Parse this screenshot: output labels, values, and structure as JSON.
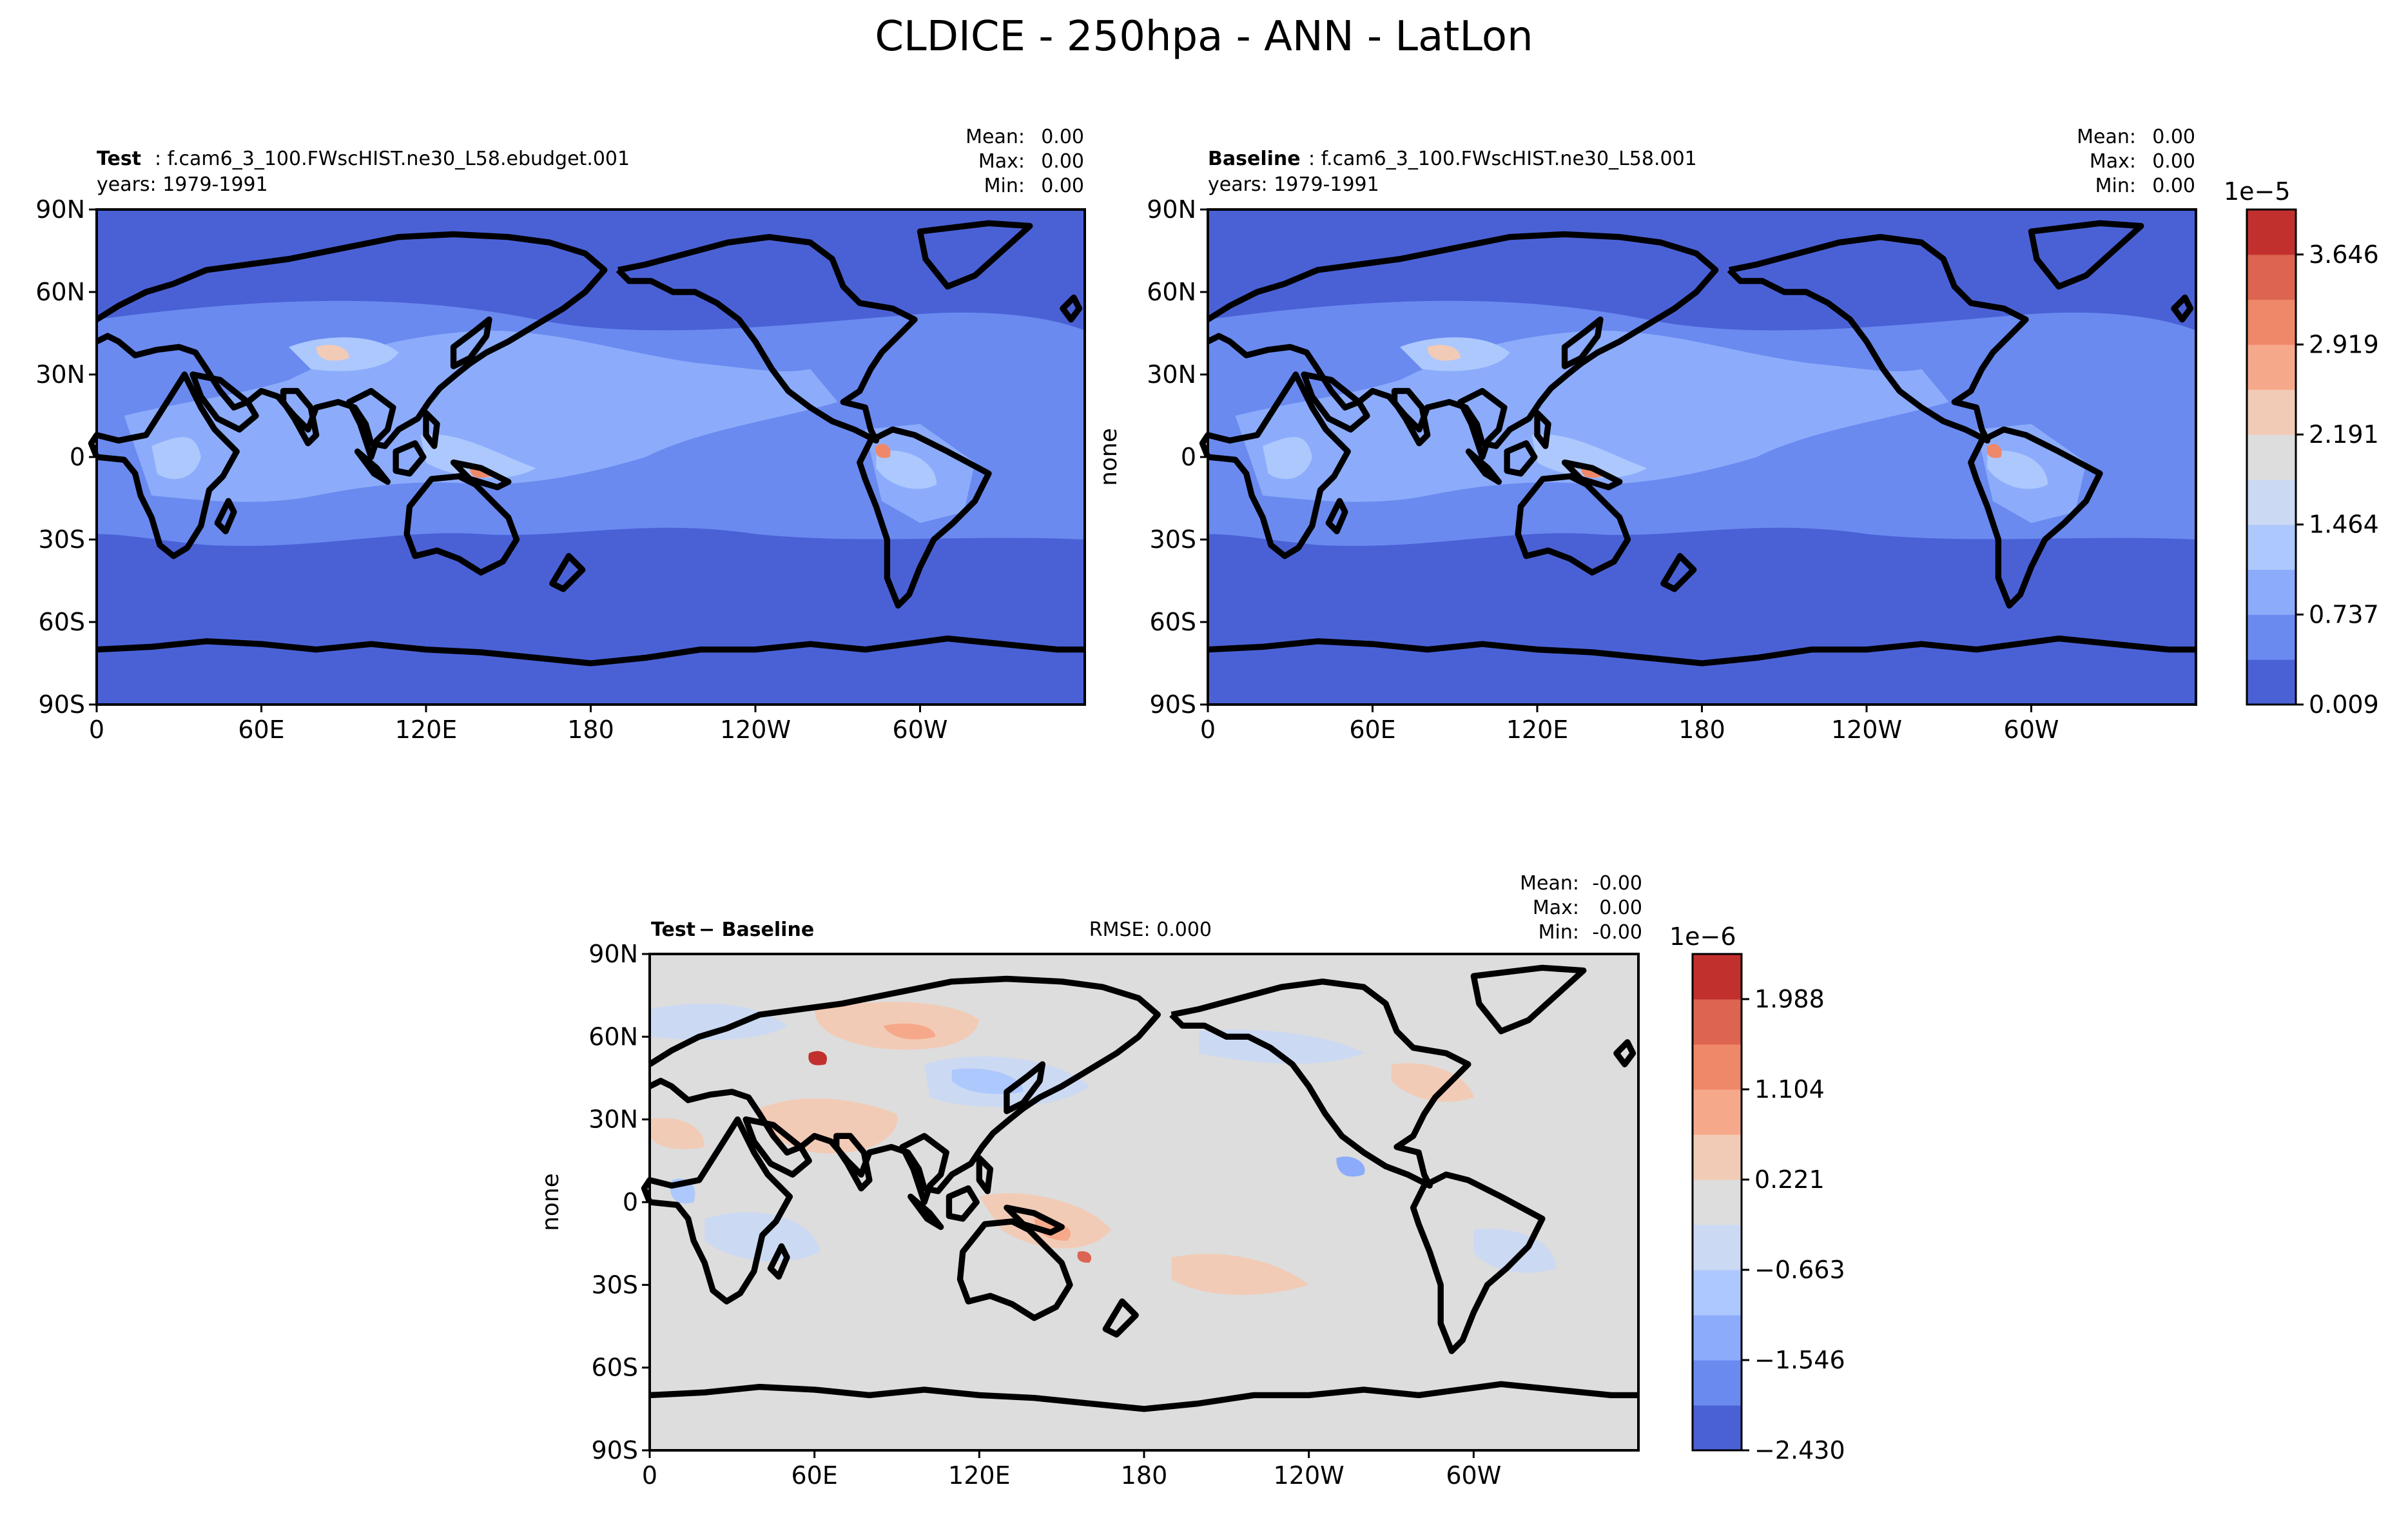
{
  "figure": {
    "title": "CLDICE - 250hpa - ANN - LatLon"
  },
  "chart_data": [
    {
      "type": "heatmap",
      "panel": "test",
      "title_bold": "Test",
      "title_rest": ": f.cam6_3_100.FWscHIST.ne30_L58.ebudget.001",
      "subtitle": "years: 1979-1991",
      "stats": [
        {
          "label": "Mean:",
          "value": "0.00"
        },
        {
          "label": "Max:",
          "value": "0.00"
        },
        {
          "label": "Min:",
          "value": "0.00"
        }
      ],
      "ylabel": "",
      "xticks": [
        "0",
        "60E",
        "120E",
        "180",
        "120W",
        "60W"
      ],
      "yticks": [
        "90N",
        "60N",
        "30N",
        "0",
        "30S",
        "60S",
        "90S"
      ],
      "xlim": [
        0,
        360
      ],
      "ylim": [
        -90,
        90
      ]
    },
    {
      "type": "heatmap",
      "panel": "baseline",
      "title_bold": "Baseline",
      "title_rest": ": f.cam6_3_100.FWscHIST.ne30_L58.001",
      "subtitle": "years: 1979-1991",
      "stats": [
        {
          "label": "Mean:",
          "value": "0.00"
        },
        {
          "label": "Max:",
          "value": "0.00"
        },
        {
          "label": "Min:",
          "value": "0.00"
        }
      ],
      "ylabel": "none",
      "xticks": [
        "0",
        "60E",
        "120E",
        "180",
        "120W",
        "60W"
      ],
      "yticks": [
        "90N",
        "60N",
        "30N",
        "0",
        "30S",
        "60S",
        "90S"
      ],
      "xlim": [
        0,
        360
      ],
      "ylim": [
        -90,
        90
      ],
      "colorbar": {
        "exponent": "1e−5",
        "ticks": [
          "0.009",
          "0.737",
          "1.464",
          "2.191",
          "2.919",
          "3.646"
        ],
        "colors": [
          "#4a61d6",
          "#6a8af0",
          "#8cacfb",
          "#adc8fd",
          "#cbd9f3",
          "#dddddd",
          "#f2cbb6",
          "#f6a98a",
          "#ef8869",
          "#dc6450",
          "#c2302e"
        ]
      }
    },
    {
      "type": "heatmap",
      "panel": "difference",
      "title_bold": "Test",
      "title_rest": " − Baseline",
      "rmse": "RMSE: 0.000",
      "stats": [
        {
          "label": "Mean:",
          "value": "-0.00"
        },
        {
          "label": "Max:",
          "value": "0.00"
        },
        {
          "label": "Min:",
          "value": "-0.00"
        }
      ],
      "ylabel": "none",
      "xticks": [
        "0",
        "60E",
        "120E",
        "180",
        "120W",
        "60W"
      ],
      "yticks": [
        "90N",
        "60N",
        "30N",
        "0",
        "30S",
        "60S",
        "90S"
      ],
      "xlim": [
        0,
        360
      ],
      "ylim": [
        -90,
        90
      ],
      "colorbar": {
        "exponent": "1e−6",
        "ticks": [
          "−2.430",
          "−1.546",
          "−0.663",
          "0.221",
          "1.104",
          "1.988"
        ],
        "colors": [
          "#4a61d6",
          "#6a8af0",
          "#8cacfb",
          "#adc8fd",
          "#cbd9f3",
          "#dddddd",
          "#f2cbb6",
          "#f6a98a",
          "#ef8869",
          "#dc6450",
          "#c2302e"
        ]
      }
    }
  ]
}
